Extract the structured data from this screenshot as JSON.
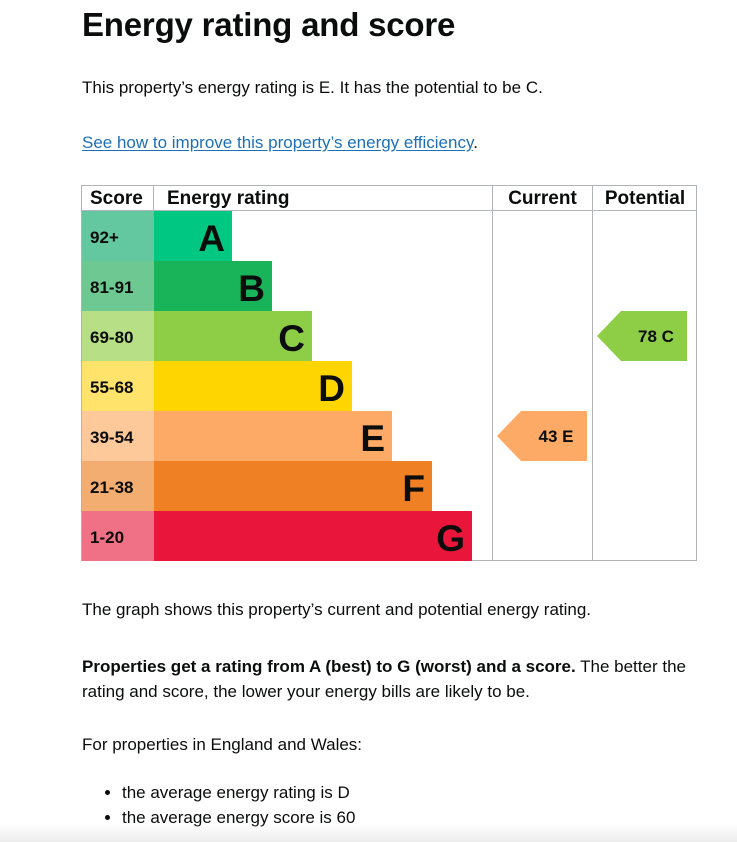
{
  "page": {
    "title": "Energy rating and score",
    "intro": "This property’s energy rating is E. It has the potential to be C.",
    "improve_link": "See how to improve this property’s energy efficiency",
    "improve_link_suffix": ".",
    "graph_note": "The graph shows this property’s current and potential energy rating.",
    "ratings_bold": "Properties get a rating from A (best) to G (worst) and a score.",
    "ratings_rest": " The better the rating and score, the lower your energy bills are likely to be.",
    "ew_intro": "For properties in England and Wales:",
    "averages": [
      "the average energy rating is D",
      "the average energy score is 60"
    ]
  },
  "chart_data": {
    "type": "table",
    "headers": {
      "score": "Score",
      "rating": "Energy rating",
      "current": "Current",
      "potential": "Potential"
    },
    "bands": [
      {
        "letter": "A",
        "score": "92+",
        "bar_color": "#00c781",
        "score_bg": "#63c8a0"
      },
      {
        "letter": "B",
        "score": "81-91",
        "bar_color": "#19b459",
        "score_bg": "#6dc991"
      },
      {
        "letter": "C",
        "score": "69-80",
        "bar_color": "#8dce46",
        "score_bg": "#b6df86"
      },
      {
        "letter": "D",
        "score": "55-68",
        "bar_color": "#ffd500",
        "score_bg": "#ffe36b"
      },
      {
        "letter": "E",
        "score": "39-54",
        "bar_color": "#fcaa65",
        "score_bg": "#fdc99b"
      },
      {
        "letter": "F",
        "score": "21-38",
        "bar_color": "#ef8023",
        "score_bg": "#f4ad70"
      },
      {
        "letter": "G",
        "score": "1-20",
        "bar_color": "#e9153b",
        "score_bg": "#f07086"
      }
    ],
    "current": {
      "score": 43,
      "letter": "E",
      "label": "43  E",
      "color": "#fcaa65"
    },
    "potential": {
      "score": 78,
      "letter": "C",
      "label": "78  C",
      "color": "#8dce46"
    }
  }
}
